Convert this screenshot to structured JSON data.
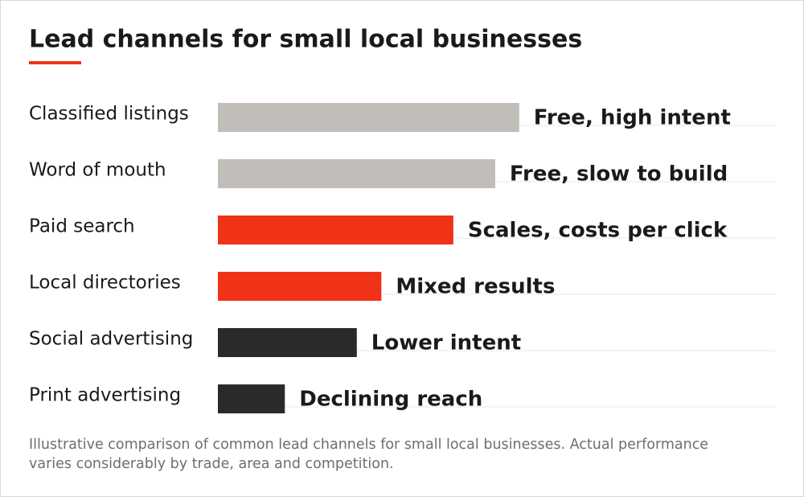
{
  "chart_data": {
    "type": "barh",
    "title": "Lead channels for small local businesses",
    "categories": [
      "Classified listings",
      "Word of mouth",
      "Paid search",
      "Local directories",
      "Social advertising",
      "Print advertising"
    ],
    "values": [
      54,
      49.7,
      42.2,
      29.3,
      24.9,
      12
    ],
    "colors": [
      "#c1bdb9",
      "#c1bdb9",
      "#f03217",
      "#f03217",
      "#2b2a29",
      "#2b2a29"
    ],
    "annotations": [
      "Free, high intent",
      "Free, slow to build",
      "Scales, costs per click",
      "Mixed results",
      "Lower intent",
      "Declining reach"
    ],
    "xlim": [
      0,
      100
    ],
    "note": "Illustrative comparison of common lead channels for small local businesses. Actual performance varies considerably by trade, area and competition."
  }
}
